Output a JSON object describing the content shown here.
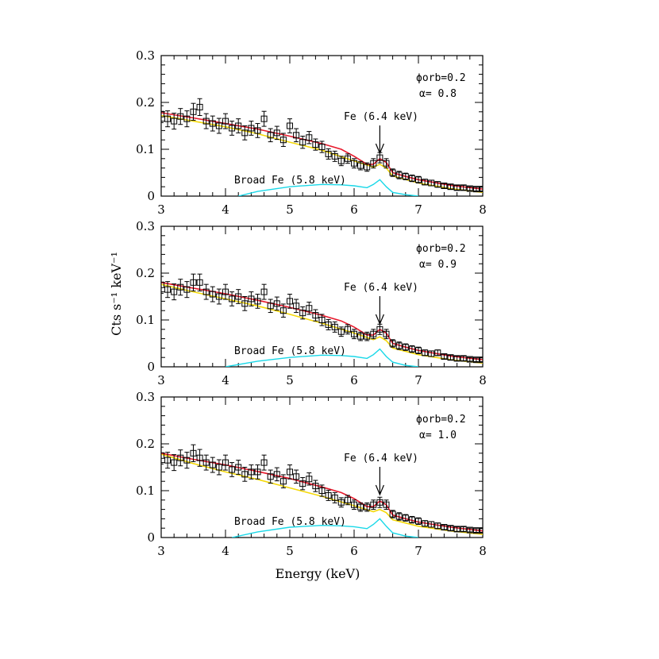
{
  "chart_data": [
    {
      "type": "line",
      "panel": 1,
      "xlim": [
        3,
        8
      ],
      "ylim": [
        0,
        0.3
      ],
      "x_ticks": [
        "3",
        "4",
        "5",
        "6",
        "7",
        "8"
      ],
      "y_ticks": [
        "0",
        "0.1",
        "0.2",
        "0.3"
      ],
      "annotation_phase": "ϕorb=0.2",
      "annotation_alpha": "α= 0.8",
      "label_fe": "Fe (6.4 keV)",
      "label_broad": "Broad Fe (5.8 keV)",
      "colors": {
        "data": "#000000",
        "total_model": "#e8192c",
        "continuum": "#f5d90a",
        "broad_fe": "#19d8e8"
      },
      "data_points": {
        "x": [
          3.0,
          3.1,
          3.2,
          3.3,
          3.4,
          3.5,
          3.6,
          3.7,
          3.8,
          3.9,
          4.0,
          4.1,
          4.2,
          4.3,
          4.4,
          4.5,
          4.6,
          4.7,
          4.8,
          4.9,
          5.0,
          5.1,
          5.2,
          5.3,
          5.4,
          5.5,
          5.6,
          5.7,
          5.8,
          5.9,
          6.0,
          6.1,
          6.2,
          6.3,
          6.4,
          6.5,
          6.6,
          6.7,
          6.8,
          6.9,
          7.0,
          7.1,
          7.2,
          7.3,
          7.4,
          7.5,
          7.6,
          7.7,
          7.8,
          7.9,
          8.0
        ],
        "y": [
          0.175,
          0.165,
          0.16,
          0.17,
          0.165,
          0.18,
          0.19,
          0.16,
          0.155,
          0.15,
          0.16,
          0.145,
          0.15,
          0.135,
          0.145,
          0.14,
          0.165,
          0.13,
          0.135,
          0.12,
          0.15,
          0.13,
          0.115,
          0.125,
          0.11,
          0.105,
          0.09,
          0.085,
          0.075,
          0.08,
          0.07,
          0.065,
          0.062,
          0.07,
          0.082,
          0.07,
          0.05,
          0.045,
          0.042,
          0.038,
          0.035,
          0.03,
          0.028,
          0.025,
          0.022,
          0.02,
          0.018,
          0.018,
          0.016,
          0.015,
          0.015
        ],
        "err": [
          0.018,
          0.017,
          0.017,
          0.017,
          0.017,
          0.018,
          0.018,
          0.016,
          0.016,
          0.016,
          0.016,
          0.015,
          0.015,
          0.015,
          0.015,
          0.015,
          0.016,
          0.014,
          0.014,
          0.014,
          0.015,
          0.014,
          0.013,
          0.013,
          0.012,
          0.012,
          0.011,
          0.011,
          0.01,
          0.01,
          0.01,
          0.009,
          0.009,
          0.01,
          0.011,
          0.01,
          0.008,
          0.008,
          0.007,
          0.007,
          0.007,
          0.006,
          0.006,
          0.006,
          0.005,
          0.005,
          0.005,
          0.005,
          0.004,
          0.004,
          0.004
        ]
      },
      "total_model": {
        "x": [
          3.0,
          3.5,
          4.0,
          4.5,
          5.0,
          5.5,
          5.8,
          6.0,
          6.2,
          6.3,
          6.4,
          6.5,
          6.6,
          6.8,
          7.0,
          7.5,
          8.0
        ],
        "y": [
          0.178,
          0.167,
          0.155,
          0.143,
          0.128,
          0.112,
          0.1,
          0.085,
          0.068,
          0.068,
          0.08,
          0.072,
          0.05,
          0.042,
          0.035,
          0.023,
          0.015
        ]
      },
      "continuum": {
        "x": [
          3.0,
          3.5,
          4.0,
          4.5,
          5.0,
          5.5,
          6.0,
          6.3,
          6.4,
          6.5,
          6.6,
          7.0,
          7.5,
          8.0
        ],
        "y": [
          0.172,
          0.16,
          0.148,
          0.133,
          0.115,
          0.098,
          0.075,
          0.062,
          0.068,
          0.06,
          0.043,
          0.028,
          0.016,
          0.008
        ]
      },
      "broad_fe": {
        "x": [
          4.2,
          4.5,
          5.0,
          5.5,
          5.8,
          6.0,
          6.2,
          6.3,
          6.4,
          6.5,
          6.6,
          6.8,
          7.0
        ],
        "y": [
          0.0,
          0.01,
          0.02,
          0.025,
          0.024,
          0.022,
          0.018,
          0.025,
          0.035,
          0.02,
          0.008,
          0.003,
          0.0
        ]
      }
    },
    {
      "type": "line",
      "panel": 2,
      "xlim": [
        3,
        8
      ],
      "ylim": [
        0,
        0.3
      ],
      "x_ticks": [
        "3",
        "4",
        "5",
        "6",
        "7",
        "8"
      ],
      "y_ticks": [
        "0",
        "0.1",
        "0.2",
        "0.3"
      ],
      "annotation_phase": "ϕorb=0.2",
      "annotation_alpha": "α= 0.9",
      "label_fe": "Fe (6.4 keV)",
      "label_broad": "Broad Fe (5.8 keV)",
      "colors": {
        "data": "#000000",
        "total_model": "#e8192c",
        "continuum": "#f5d90a",
        "broad_fe": "#19d8e8"
      },
      "data_points": {
        "x": [
          3.0,
          3.1,
          3.2,
          3.3,
          3.4,
          3.5,
          3.6,
          3.7,
          3.8,
          3.9,
          4.0,
          4.1,
          4.2,
          4.3,
          4.4,
          4.5,
          4.6,
          4.7,
          4.8,
          4.9,
          5.0,
          5.1,
          5.2,
          5.3,
          5.4,
          5.5,
          5.6,
          5.7,
          5.8,
          5.9,
          6.0,
          6.1,
          6.2,
          6.3,
          6.4,
          6.5,
          6.6,
          6.7,
          6.8,
          6.9,
          7.0,
          7.1,
          7.2,
          7.3,
          7.4,
          7.5,
          7.6,
          7.7,
          7.8,
          7.9,
          8.0
        ],
        "y": [
          0.175,
          0.165,
          0.16,
          0.17,
          0.165,
          0.18,
          0.18,
          0.16,
          0.155,
          0.15,
          0.16,
          0.145,
          0.15,
          0.135,
          0.145,
          0.14,
          0.16,
          0.13,
          0.135,
          0.12,
          0.14,
          0.13,
          0.115,
          0.125,
          0.11,
          0.1,
          0.09,
          0.085,
          0.075,
          0.08,
          0.07,
          0.065,
          0.065,
          0.07,
          0.08,
          0.07,
          0.05,
          0.045,
          0.042,
          0.038,
          0.035,
          0.03,
          0.028,
          0.03,
          0.022,
          0.02,
          0.018,
          0.018,
          0.016,
          0.015,
          0.015
        ],
        "err": [
          0.018,
          0.017,
          0.017,
          0.017,
          0.017,
          0.018,
          0.018,
          0.016,
          0.016,
          0.016,
          0.016,
          0.015,
          0.015,
          0.015,
          0.015,
          0.015,
          0.016,
          0.014,
          0.014,
          0.014,
          0.015,
          0.014,
          0.013,
          0.013,
          0.012,
          0.012,
          0.011,
          0.011,
          0.01,
          0.01,
          0.01,
          0.009,
          0.009,
          0.01,
          0.011,
          0.01,
          0.008,
          0.008,
          0.007,
          0.007,
          0.007,
          0.006,
          0.006,
          0.006,
          0.005,
          0.005,
          0.005,
          0.005,
          0.004,
          0.004,
          0.004
        ]
      },
      "total_model": {
        "x": [
          3.0,
          3.5,
          4.0,
          4.5,
          5.0,
          5.5,
          5.8,
          6.0,
          6.2,
          6.3,
          6.4,
          6.5,
          6.6,
          6.8,
          7.0,
          7.5,
          8.0
        ],
        "y": [
          0.18,
          0.168,
          0.156,
          0.142,
          0.127,
          0.11,
          0.098,
          0.085,
          0.068,
          0.068,
          0.08,
          0.072,
          0.05,
          0.042,
          0.035,
          0.023,
          0.015
        ]
      },
      "continuum": {
        "x": [
          3.0,
          3.5,
          4.0,
          4.5,
          5.0,
          5.5,
          6.0,
          6.3,
          6.4,
          6.5,
          6.6,
          7.0,
          7.5,
          8.0
        ],
        "y": [
          0.176,
          0.16,
          0.145,
          0.13,
          0.112,
          0.093,
          0.072,
          0.058,
          0.064,
          0.056,
          0.04,
          0.026,
          0.015,
          0.008
        ]
      },
      "broad_fe": {
        "x": [
          4.0,
          4.5,
          5.0,
          5.5,
          5.8,
          6.0,
          6.2,
          6.3,
          6.4,
          6.5,
          6.6,
          6.8,
          7.0
        ],
        "y": [
          0.0,
          0.012,
          0.02,
          0.025,
          0.024,
          0.022,
          0.018,
          0.026,
          0.038,
          0.022,
          0.01,
          0.003,
          0.0
        ]
      }
    },
    {
      "type": "line",
      "panel": 3,
      "xlim": [
        3,
        8
      ],
      "ylim": [
        0,
        0.3
      ],
      "x_ticks": [
        "3",
        "4",
        "5",
        "6",
        "7",
        "8"
      ],
      "y_ticks": [
        "0",
        "0.1",
        "0.2",
        "0.3"
      ],
      "annotation_phase": "ϕorb=0.2",
      "annotation_alpha": "α= 1.0",
      "label_fe": "Fe (6.4 keV)",
      "label_broad": "Broad Fe (5.8 keV)",
      "colors": {
        "data": "#000000",
        "total_model": "#e8192c",
        "continuum": "#f5d90a",
        "broad_fe": "#19d8e8"
      },
      "data_points": {
        "x": [
          3.0,
          3.1,
          3.2,
          3.3,
          3.4,
          3.5,
          3.6,
          3.7,
          3.8,
          3.9,
          4.0,
          4.1,
          4.2,
          4.3,
          4.4,
          4.5,
          4.6,
          4.7,
          4.8,
          4.9,
          5.0,
          5.1,
          5.2,
          5.3,
          5.4,
          5.5,
          5.6,
          5.7,
          5.8,
          5.9,
          6.0,
          6.1,
          6.2,
          6.3,
          6.4,
          6.5,
          6.6,
          6.7,
          6.8,
          6.9,
          7.0,
          7.1,
          7.2,
          7.3,
          7.4,
          7.5,
          7.6,
          7.7,
          7.8,
          7.9,
          8.0
        ],
        "y": [
          0.175,
          0.165,
          0.16,
          0.17,
          0.165,
          0.18,
          0.17,
          0.16,
          0.155,
          0.15,
          0.16,
          0.145,
          0.15,
          0.135,
          0.14,
          0.14,
          0.16,
          0.13,
          0.135,
          0.12,
          0.14,
          0.13,
          0.115,
          0.125,
          0.11,
          0.1,
          0.09,
          0.085,
          0.075,
          0.08,
          0.07,
          0.065,
          0.065,
          0.07,
          0.075,
          0.07,
          0.05,
          0.045,
          0.042,
          0.038,
          0.035,
          0.03,
          0.028,
          0.025,
          0.022,
          0.02,
          0.018,
          0.018,
          0.016,
          0.015,
          0.015
        ],
        "err": [
          0.018,
          0.017,
          0.017,
          0.017,
          0.017,
          0.018,
          0.018,
          0.016,
          0.016,
          0.016,
          0.016,
          0.015,
          0.015,
          0.015,
          0.015,
          0.015,
          0.016,
          0.014,
          0.014,
          0.014,
          0.015,
          0.014,
          0.013,
          0.013,
          0.012,
          0.012,
          0.011,
          0.011,
          0.01,
          0.01,
          0.01,
          0.009,
          0.009,
          0.01,
          0.011,
          0.01,
          0.008,
          0.008,
          0.007,
          0.007,
          0.007,
          0.006,
          0.006,
          0.006,
          0.005,
          0.005,
          0.005,
          0.005,
          0.004,
          0.004,
          0.004
        ]
      },
      "total_model": {
        "x": [
          3.0,
          3.5,
          4.0,
          4.5,
          5.0,
          5.5,
          5.8,
          6.0,
          6.2,
          6.3,
          6.4,
          6.5,
          6.6,
          6.8,
          7.0,
          7.5,
          8.0
        ],
        "y": [
          0.18,
          0.167,
          0.155,
          0.141,
          0.126,
          0.108,
          0.096,
          0.083,
          0.066,
          0.066,
          0.078,
          0.07,
          0.048,
          0.04,
          0.033,
          0.022,
          0.014
        ]
      },
      "continuum": {
        "x": [
          3.0,
          3.5,
          4.0,
          4.5,
          5.0,
          5.5,
          6.0,
          6.3,
          6.4,
          6.5,
          6.6,
          7.0,
          7.5,
          8.0
        ],
        "y": [
          0.178,
          0.158,
          0.14,
          0.124,
          0.106,
          0.088,
          0.068,
          0.055,
          0.06,
          0.053,
          0.038,
          0.024,
          0.014,
          0.007
        ]
      },
      "broad_fe": {
        "x": [
          4.1,
          4.5,
          5.0,
          5.5,
          5.8,
          6.0,
          6.2,
          6.3,
          6.4,
          6.5,
          6.6,
          6.8,
          7.0
        ],
        "y": [
          0.0,
          0.012,
          0.022,
          0.026,
          0.025,
          0.023,
          0.019,
          0.028,
          0.04,
          0.024,
          0.01,
          0.003,
          0.0
        ]
      }
    }
  ],
  "xlabel": "Energy (keV)",
  "ylabel": "Cts s⁻¹ keV⁻¹"
}
